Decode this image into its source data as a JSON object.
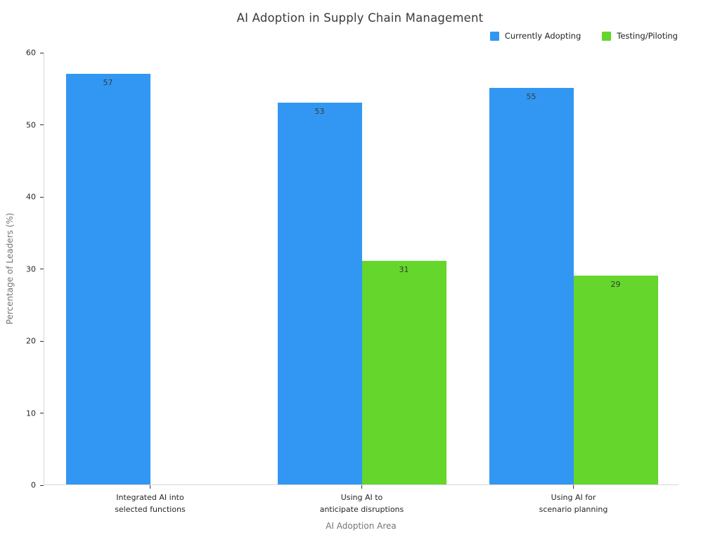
{
  "chart_data": {
    "type": "bar",
    "title": "AI Adoption in Supply Chain Management",
    "xlabel": "AI Adoption Area",
    "ylabel": "Percentage of Leaders (%)",
    "categories": [
      "Integrated AI into\nselected functions",
      "Using AI to\nanticipate disruptions",
      "Using AI for\nscenario planning"
    ],
    "series": [
      {
        "name": "Currently Adopting",
        "color": "#3197f3",
        "values": [
          57,
          53,
          55
        ]
      },
      {
        "name": "Testing/Piloting",
        "color": "#64d62c",
        "values": [
          null,
          31,
          29
        ]
      }
    ],
    "ylim": [
      0,
      60
    ],
    "yticks": [
      0,
      10,
      20,
      30,
      40,
      50,
      60
    ],
    "legend_position": "top-right",
    "grid": false,
    "bar_value_labels": true
  }
}
